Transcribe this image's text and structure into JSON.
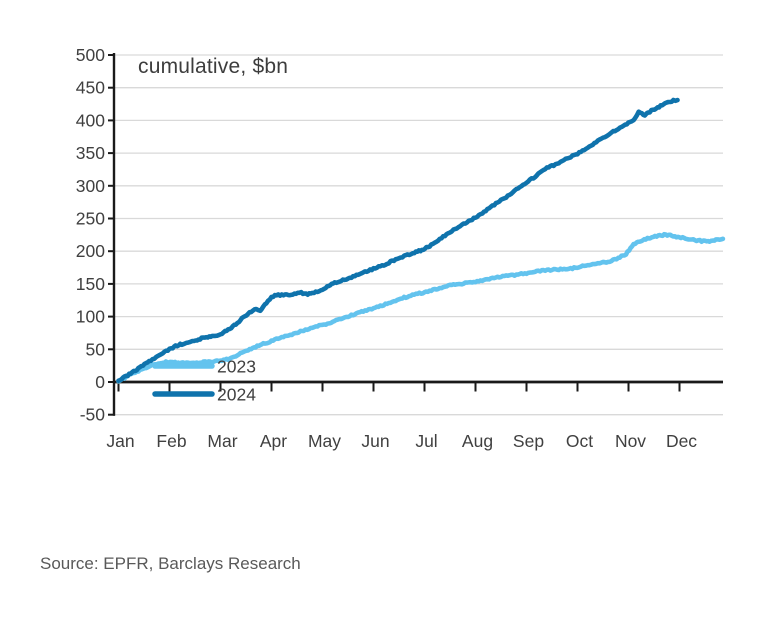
{
  "page": {
    "source_note": "Source: EPFR, Barclays Research"
  },
  "chart_data": {
    "type": "line",
    "title": "cumulative, $bn",
    "xlabel": "",
    "ylabel": "",
    "ylim": [
      -50,
      500
    ],
    "y_ticks": [
      500,
      450,
      400,
      350,
      300,
      250,
      200,
      150,
      100,
      50,
      0,
      -50
    ],
    "x_tick_labels": [
      "Jan",
      "Feb",
      "Mar",
      "Apr",
      "May",
      "Jun",
      "Jul",
      "Aug",
      "Sep",
      "Oct",
      "Nov",
      "Dec"
    ],
    "grid": "horizontal-on",
    "legend_position": "inside-bottom-left",
    "colors": {
      "series_2023": "#63c3ee",
      "series_2024": "#0f73ac",
      "gridline": "#d9d9d9",
      "axis": "#1a1a1a",
      "text": "#404040"
    },
    "series": [
      {
        "name": "2023",
        "color_key": "series_2023",
        "points": [
          [
            0.0,
            1
          ],
          [
            0.15,
            8
          ],
          [
            0.3,
            14
          ],
          [
            0.45,
            19
          ],
          [
            0.6,
            24
          ],
          [
            0.75,
            27
          ],
          [
            0.9,
            30
          ],
          [
            1.05,
            31
          ],
          [
            1.2,
            29
          ],
          [
            1.4,
            29
          ],
          [
            1.6,
            30
          ],
          [
            1.8,
            31
          ],
          [
            2.0,
            33
          ],
          [
            2.15,
            35
          ],
          [
            2.3,
            39
          ],
          [
            2.45,
            46
          ],
          [
            2.6,
            51
          ],
          [
            2.75,
            56
          ],
          [
            2.9,
            60
          ],
          [
            3.0,
            63
          ],
          [
            3.2,
            68
          ],
          [
            3.4,
            73
          ],
          [
            3.6,
            78
          ],
          [
            3.8,
            83
          ],
          [
            4.0,
            87
          ],
          [
            4.2,
            92
          ],
          [
            4.4,
            98
          ],
          [
            4.6,
            103
          ],
          [
            4.8,
            108
          ],
          [
            5.0,
            112
          ],
          [
            5.2,
            118
          ],
          [
            5.4,
            124
          ],
          [
            5.6,
            129
          ],
          [
            5.8,
            134
          ],
          [
            6.0,
            137
          ],
          [
            6.2,
            142
          ],
          [
            6.4,
            146
          ],
          [
            6.6,
            149
          ],
          [
            6.8,
            151
          ],
          [
            7.0,
            153
          ],
          [
            7.2,
            157
          ],
          [
            7.4,
            160
          ],
          [
            7.6,
            162
          ],
          [
            7.8,
            164
          ],
          [
            8.0,
            166
          ],
          [
            8.2,
            169
          ],
          [
            8.4,
            171
          ],
          [
            8.6,
            172
          ],
          [
            8.8,
            173
          ],
          [
            9.0,
            175
          ],
          [
            9.2,
            179
          ],
          [
            9.4,
            182
          ],
          [
            9.6,
            184
          ],
          [
            9.8,
            189
          ],
          [
            9.95,
            196
          ],
          [
            10.1,
            210
          ],
          [
            10.25,
            216
          ],
          [
            10.4,
            220
          ],
          [
            10.55,
            223
          ],
          [
            10.7,
            225
          ],
          [
            10.85,
            224
          ],
          [
            11.0,
            221
          ],
          [
            11.15,
            219
          ],
          [
            11.3,
            217
          ],
          [
            11.5,
            215
          ],
          [
            11.65,
            216
          ],
          [
            11.85,
            219
          ]
        ]
      },
      {
        "name": "2024",
        "color_key": "series_2024",
        "points": [
          [
            0.0,
            2
          ],
          [
            0.15,
            9
          ],
          [
            0.3,
            16
          ],
          [
            0.45,
            24
          ],
          [
            0.6,
            31
          ],
          [
            0.8,
            41
          ],
          [
            1.0,
            50
          ],
          [
            1.15,
            56
          ],
          [
            1.3,
            59
          ],
          [
            1.45,
            62
          ],
          [
            1.6,
            66
          ],
          [
            1.75,
            69
          ],
          [
            1.9,
            71
          ],
          [
            2.0,
            73
          ],
          [
            2.15,
            80
          ],
          [
            2.3,
            88
          ],
          [
            2.45,
            99
          ],
          [
            2.6,
            108
          ],
          [
            2.7,
            111
          ],
          [
            2.78,
            108
          ],
          [
            2.9,
            121
          ],
          [
            3.0,
            130
          ],
          [
            3.1,
            133
          ],
          [
            3.3,
            133
          ],
          [
            3.45,
            134
          ],
          [
            3.55,
            137
          ],
          [
            3.68,
            134
          ],
          [
            3.8,
            136
          ],
          [
            4.0,
            141
          ],
          [
            4.15,
            149
          ],
          [
            4.3,
            153
          ],
          [
            4.5,
            158
          ],
          [
            4.7,
            164
          ],
          [
            4.9,
            170
          ],
          [
            5.0,
            173
          ],
          [
            5.2,
            179
          ],
          [
            5.4,
            186
          ],
          [
            5.6,
            192
          ],
          [
            5.8,
            198
          ],
          [
            5.95,
            202
          ],
          [
            6.1,
            208
          ],
          [
            6.3,
            219
          ],
          [
            6.5,
            229
          ],
          [
            6.7,
            238
          ],
          [
            6.9,
            247
          ],
          [
            7.0,
            252
          ],
          [
            7.2,
            262
          ],
          [
            7.4,
            273
          ],
          [
            7.6,
            283
          ],
          [
            7.8,
            294
          ],
          [
            8.0,
            305
          ],
          [
            8.2,
            316
          ],
          [
            8.4,
            327
          ],
          [
            8.6,
            334
          ],
          [
            8.8,
            342
          ],
          [
            9.0,
            349
          ],
          [
            9.2,
            358
          ],
          [
            9.4,
            368
          ],
          [
            9.6,
            378
          ],
          [
            9.8,
            387
          ],
          [
            10.0,
            396
          ],
          [
            10.1,
            400
          ],
          [
            10.2,
            413
          ],
          [
            10.32,
            408
          ],
          [
            10.45,
            415
          ],
          [
            10.6,
            421
          ],
          [
            10.75,
            427
          ],
          [
            10.88,
            430
          ],
          [
            10.96,
            431
          ]
        ]
      }
    ]
  }
}
